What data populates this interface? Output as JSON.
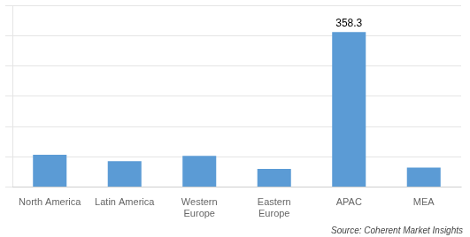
{
  "chart_data": {
    "type": "bar",
    "categories": [
      "North America",
      "Latin America",
      "Western\nEurope",
      "Eastern\nEurope",
      "APAC",
      "MEA"
    ],
    "values": [
      75,
      60,
      72,
      42,
      358.3,
      45
    ],
    "color": "#5B9BD5",
    "ylim": [
      0,
      420
    ],
    "yticks": [
      0,
      70,
      140,
      210,
      280,
      350,
      420
    ],
    "grid": true,
    "tick_labels": "x",
    "annotations": [
      {
        "text": "358.3",
        "x": "APAC",
        "y": 358.3
      }
    ],
    "source": "Source: Coherent Market Insights"
  }
}
